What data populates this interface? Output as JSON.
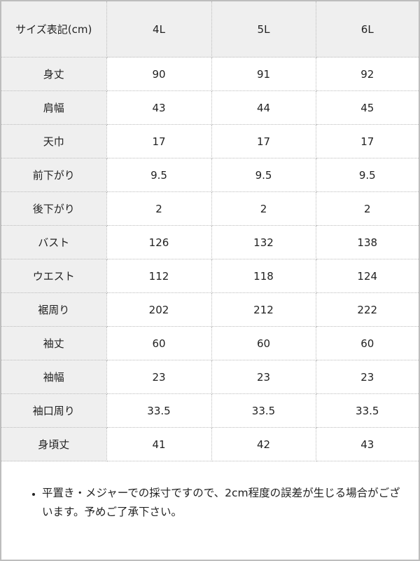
{
  "table": {
    "headers": [
      "サイズ表記(cm)",
      "4L",
      "5L",
      "6L"
    ],
    "rows": [
      {
        "label": "身丈",
        "values": [
          "90",
          "91",
          "92"
        ]
      },
      {
        "label": "肩幅",
        "values": [
          "43",
          "44",
          "45"
        ]
      },
      {
        "label": "天巾",
        "values": [
          "17",
          "17",
          "17"
        ]
      },
      {
        "label": "前下がり",
        "values": [
          "9.5",
          "9.5",
          "9.5"
        ]
      },
      {
        "label": "後下がり",
        "values": [
          "2",
          "2",
          "2"
        ]
      },
      {
        "label": "バスト",
        "values": [
          "126",
          "132",
          "138"
        ]
      },
      {
        "label": "ウエスト",
        "values": [
          "112",
          "118",
          "124"
        ]
      },
      {
        "label": "裾周り",
        "values": [
          "202",
          "212",
          "222"
        ]
      },
      {
        "label": "袖丈",
        "values": [
          "60",
          "60",
          "60"
        ]
      },
      {
        "label": "袖幅",
        "values": [
          "23",
          "23",
          "23"
        ]
      },
      {
        "label": "袖口周り",
        "values": [
          "33.5",
          "33.5",
          "33.5"
        ]
      },
      {
        "label": "身頃丈",
        "values": [
          "41",
          "42",
          "43"
        ]
      }
    ]
  },
  "note": "平置き・メジャーでの採寸ですので、2cm程度の誤差が生じる場合がございます。予めご了承下さい。"
}
